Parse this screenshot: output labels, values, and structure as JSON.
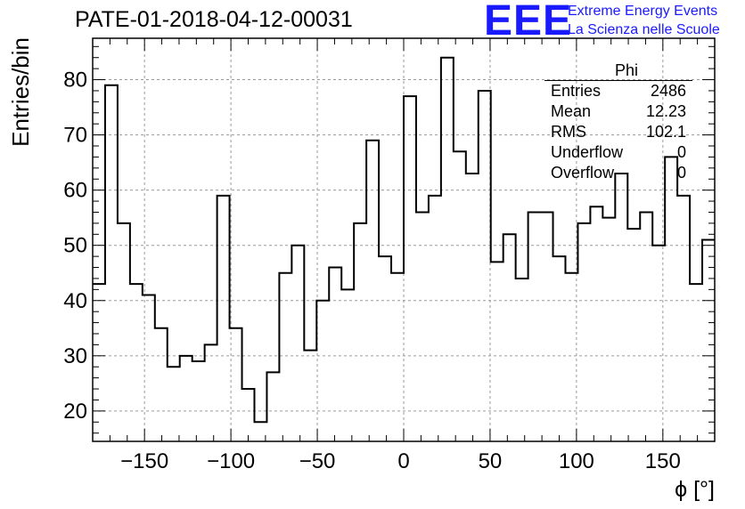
{
  "title": "PATE-01-2018-04-12-00031",
  "logo": {
    "mark": "EEE",
    "line1": "Extreme Energy Events",
    "line2": "La Scienza nelle Scuole",
    "color": "#1a1aff"
  },
  "stats_box": {
    "name": "Phi",
    "rows": [
      {
        "label": "Entries",
        "value": "2486"
      },
      {
        "label": "Mean",
        "value": "12.23"
      },
      {
        "label": "RMS",
        "value": "102.1"
      },
      {
        "label": "Underflow",
        "value": "0"
      },
      {
        "label": "Overflow",
        "value": "0"
      }
    ]
  },
  "chart_data": {
    "type": "bar",
    "style": "step-histogram",
    "title": "PATE-01-2018-04-12-00031",
    "xlabel": "ϕ [°]",
    "ylabel": "Entries/bin",
    "xlim": [
      -180,
      180
    ],
    "ylim": [
      14.5,
      87.5
    ],
    "xticks": [
      -150,
      -100,
      -50,
      0,
      50,
      100,
      150
    ],
    "yticks": [
      20,
      30,
      40,
      50,
      60,
      70,
      80
    ],
    "grid": true,
    "bin_width": 7.2,
    "values": [
      43,
      79,
      54,
      43,
      41,
      35,
      28,
      30,
      29,
      32,
      59,
      35,
      24,
      18,
      27,
      45,
      50,
      31,
      40,
      46,
      42,
      54,
      69,
      48,
      45,
      77,
      56,
      59,
      84,
      67,
      63,
      78,
      47,
      52,
      44,
      56,
      56,
      48,
      45,
      54,
      57,
      55,
      63,
      53,
      56,
      50,
      66,
      59,
      43,
      51
    ]
  }
}
